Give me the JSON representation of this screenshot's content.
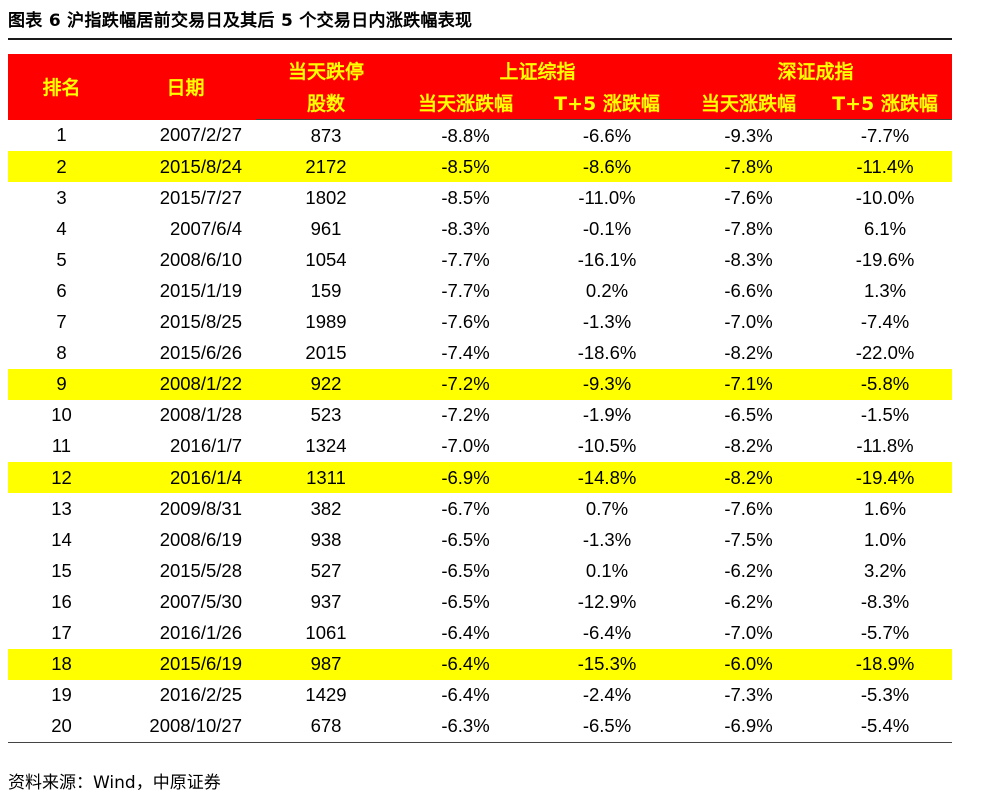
{
  "title": "图表 6 沪指跌幅居前交易日及其后 5 个交易日内涨跌幅表现",
  "source": "资料来源：Wind，中原证券",
  "colors": {
    "header_bg": "#ff0000",
    "header_text": "#ffff00",
    "highlight_row": "#ffff00"
  },
  "header": {
    "rank": "排名",
    "date": "日期",
    "limit_down_line1": "当天跌停",
    "limit_down_line2": "股数",
    "sh_group": "上证综指",
    "sz_group": "深证成指",
    "sh_day": "当天涨跌幅",
    "sh_t5": "T+5 涨跌幅",
    "sz_day": "当天涨跌幅",
    "sz_t5": "T+5 涨跌幅"
  },
  "rows": [
    {
      "rank": "1",
      "date": "2007/2/27",
      "limit_down": "873",
      "sh_day": "-8.8%",
      "sh_t5": "-6.6%",
      "sz_day": "-9.3%",
      "sz_t5": "-7.7%",
      "highlight": false
    },
    {
      "rank": "2",
      "date": "2015/8/24",
      "limit_down": "2172",
      "sh_day": "-8.5%",
      "sh_t5": "-8.6%",
      "sz_day": "-7.8%",
      "sz_t5": "-11.4%",
      "highlight": true
    },
    {
      "rank": "3",
      "date": "2015/7/27",
      "limit_down": "1802",
      "sh_day": "-8.5%",
      "sh_t5": "-11.0%",
      "sz_day": "-7.6%",
      "sz_t5": "-10.0%",
      "highlight": false
    },
    {
      "rank": "4",
      "date": "2007/6/4",
      "limit_down": "961",
      "sh_day": "-8.3%",
      "sh_t5": "-0.1%",
      "sz_day": "-7.8%",
      "sz_t5": "6.1%",
      "highlight": false
    },
    {
      "rank": "5",
      "date": "2008/6/10",
      "limit_down": "1054",
      "sh_day": "-7.7%",
      "sh_t5": "-16.1%",
      "sz_day": "-8.3%",
      "sz_t5": "-19.6%",
      "highlight": false
    },
    {
      "rank": "6",
      "date": "2015/1/19",
      "limit_down": "159",
      "sh_day": "-7.7%",
      "sh_t5": "0.2%",
      "sz_day": "-6.6%",
      "sz_t5": "1.3%",
      "highlight": false
    },
    {
      "rank": "7",
      "date": "2015/8/25",
      "limit_down": "1989",
      "sh_day": "-7.6%",
      "sh_t5": "-1.3%",
      "sz_day": "-7.0%",
      "sz_t5": "-7.4%",
      "highlight": false
    },
    {
      "rank": "8",
      "date": "2015/6/26",
      "limit_down": "2015",
      "sh_day": "-7.4%",
      "sh_t5": "-18.6%",
      "sz_day": "-8.2%",
      "sz_t5": "-22.0%",
      "highlight": false
    },
    {
      "rank": "9",
      "date": "2008/1/22",
      "limit_down": "922",
      "sh_day": "-7.2%",
      "sh_t5": "-9.3%",
      "sz_day": "-7.1%",
      "sz_t5": "-5.8%",
      "highlight": true
    },
    {
      "rank": "10",
      "date": "2008/1/28",
      "limit_down": "523",
      "sh_day": "-7.2%",
      "sh_t5": "-1.9%",
      "sz_day": "-6.5%",
      "sz_t5": "-1.5%",
      "highlight": false
    },
    {
      "rank": "11",
      "date": "2016/1/7",
      "limit_down": "1324",
      "sh_day": "-7.0%",
      "sh_t5": "-10.5%",
      "sz_day": "-8.2%",
      "sz_t5": "-11.8%",
      "highlight": false
    },
    {
      "rank": "12",
      "date": "2016/1/4",
      "limit_down": "1311",
      "sh_day": "-6.9%",
      "sh_t5": "-14.8%",
      "sz_day": "-8.2%",
      "sz_t5": "-19.4%",
      "highlight": true
    },
    {
      "rank": "13",
      "date": "2009/8/31",
      "limit_down": "382",
      "sh_day": "-6.7%",
      "sh_t5": "0.7%",
      "sz_day": "-7.6%",
      "sz_t5": "1.6%",
      "highlight": false
    },
    {
      "rank": "14",
      "date": "2008/6/19",
      "limit_down": "938",
      "sh_day": "-6.5%",
      "sh_t5": "-1.3%",
      "sz_day": "-7.5%",
      "sz_t5": "1.0%",
      "highlight": false
    },
    {
      "rank": "15",
      "date": "2015/5/28",
      "limit_down": "527",
      "sh_day": "-6.5%",
      "sh_t5": "0.1%",
      "sz_day": "-6.2%",
      "sz_t5": "3.2%",
      "highlight": false
    },
    {
      "rank": "16",
      "date": "2007/5/30",
      "limit_down": "937",
      "sh_day": "-6.5%",
      "sh_t5": "-12.9%",
      "sz_day": "-6.2%",
      "sz_t5": "-8.3%",
      "highlight": false
    },
    {
      "rank": "17",
      "date": "2016/1/26",
      "limit_down": "1061",
      "sh_day": "-6.4%",
      "sh_t5": "-6.4%",
      "sz_day": "-7.0%",
      "sz_t5": "-5.7%",
      "highlight": false
    },
    {
      "rank": "18",
      "date": "2015/6/19",
      "limit_down": "987",
      "sh_day": "-6.4%",
      "sh_t5": "-15.3%",
      "sz_day": "-6.0%",
      "sz_t5": "-18.9%",
      "highlight": true
    },
    {
      "rank": "19",
      "date": "2016/2/25",
      "limit_down": "1429",
      "sh_day": "-6.4%",
      "sh_t5": "-2.4%",
      "sz_day": "-7.3%",
      "sz_t5": "-5.3%",
      "highlight": false
    },
    {
      "rank": "20",
      "date": "2008/10/27",
      "limit_down": "678",
      "sh_day": "-6.3%",
      "sh_t5": "-6.5%",
      "sz_day": "-6.9%",
      "sz_t5": "-5.4%",
      "highlight": false
    }
  ]
}
